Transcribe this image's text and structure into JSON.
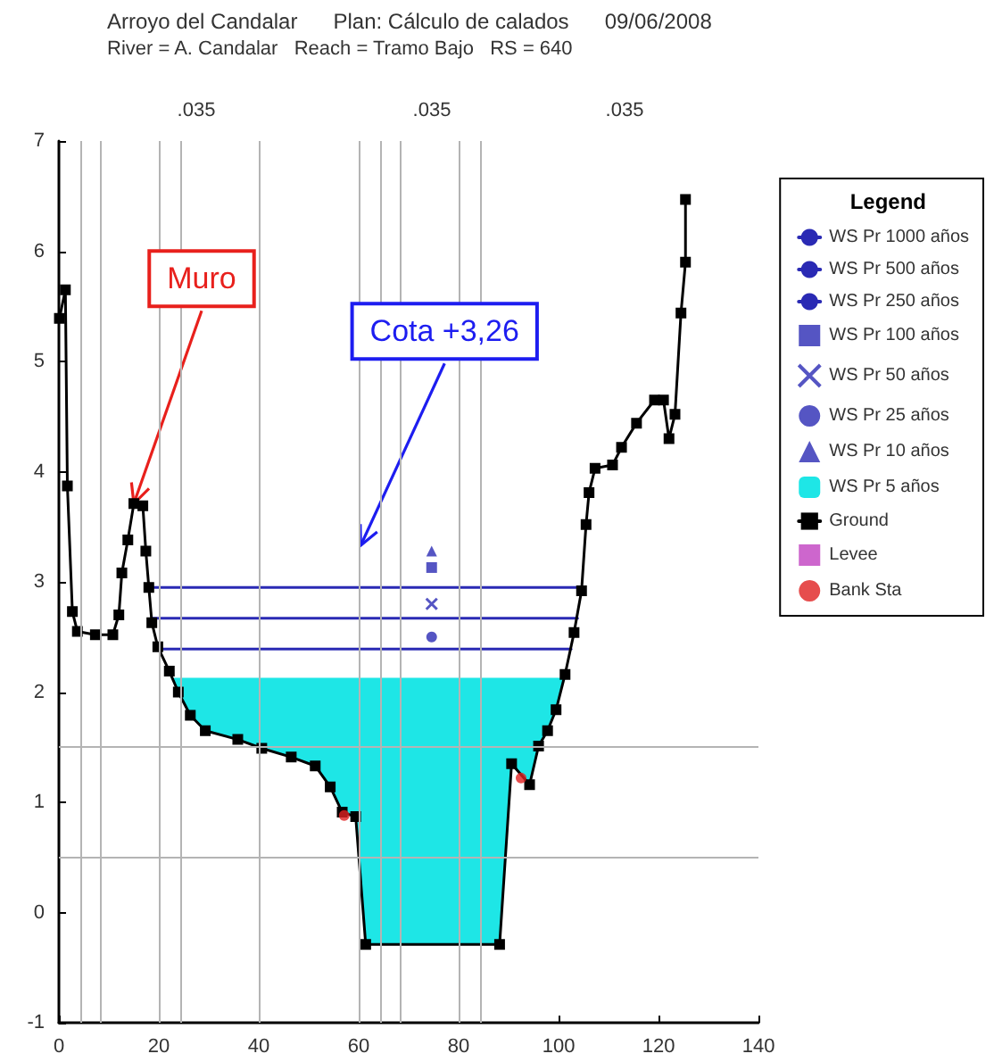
{
  "chart_data": {
    "type": "line",
    "title": "Arroyo del Candalar      Plan: Cálculo de calados      09/06/2008",
    "subtitle": "River = A. Candalar   Reach = Tramo Bajo   RS = 640",
    "legend_title": "Legend",
    "legend": "right",
    "grid": false,
    "xlim": [
      0,
      140
    ],
    "xticks": [
      0,
      20,
      40,
      60,
      80,
      100,
      120,
      140
    ],
    "ylim": [
      -1,
      7
    ],
    "yticks": [
      -1,
      0,
      1,
      2,
      3,
      4,
      5,
      6,
      7
    ],
    "annotations": [
      {
        "text": "Muro",
        "x": 15,
        "y": 3.71
      },
      {
        "text": "Cota +3,26",
        "x": 60.4,
        "y": 3.33
      },
      ".035",
      ".035",
      ".035"
    ],
    "ref_lines": [
      {
        "axis": "x",
        "value": 4.3,
        "color": "#b4b4b4"
      },
      {
        "axis": "x",
        "value": 8.2,
        "color": "#b4b4b4"
      },
      {
        "axis": "x",
        "value": 20,
        "color": "#b4b4b4"
      },
      {
        "axis": "x",
        "value": 24.3,
        "color": "#b4b4b4"
      },
      {
        "axis": "x",
        "value": 40,
        "color": "#b4b4b4"
      },
      {
        "axis": "x",
        "value": 60,
        "color": "#b4b4b4"
      },
      {
        "axis": "x",
        "value": 64.3,
        "color": "#b4b4b4"
      },
      {
        "axis": "x",
        "value": 68.2,
        "color": "#b4b4b4"
      },
      {
        "axis": "x",
        "value": 80,
        "color": "#b4b4b4"
      },
      {
        "axis": "x",
        "value": 84.3,
        "color": "#b4b4b4"
      },
      {
        "axis": "y",
        "value": 1.5,
        "color": "#b4b4b4"
      },
      {
        "axis": "y",
        "value": 0.5,
        "color": "#b4b4b4"
      }
    ],
    "series": [
      {
        "name": "WS Pr 1000 años",
        "type": "line",
        "marker": "none",
        "color": "#2a2ab4",
        "x": [
          18,
          104.6
        ],
        "values": [
          2.95,
          2.95
        ]
      },
      {
        "name": "WS Pr 500 años",
        "type": "line",
        "marker": "none",
        "color": "#2a2ab4",
        "x": [
          18.6,
          103.8
        ],
        "values": [
          2.67,
          2.67
        ]
      },
      {
        "name": "WS Pr 250 años",
        "type": "line",
        "marker": "none",
        "color": "#2a2ab4",
        "x": [
          19.8,
          102.5
        ],
        "values": [
          2.39,
          2.39
        ]
      },
      {
        "name": "WS Pr 100 años",
        "type": "scatter",
        "marker": "square",
        "color": "#2a2ab4",
        "x": [
          74.6
        ],
        "values": [
          3.13
        ]
      },
      {
        "name": "WS Pr 50 años",
        "type": "scatter",
        "marker": "cross",
        "color": "#2a2ab4",
        "x": [
          74.6
        ],
        "values": [
          2.8
        ]
      },
      {
        "name": "WS Pr 25 años",
        "type": "scatter",
        "marker": "circle",
        "color": "#2a2ab4",
        "x": [
          74.6
        ],
        "values": [
          2.5
        ]
      },
      {
        "name": "WS Pr 10 años",
        "type": "scatter",
        "marker": "triangle",
        "color": "#2a2ab4",
        "x": [
          74.6
        ],
        "values": [
          3.28
        ]
      },
      {
        "name": "WS Pr 5 años",
        "type": "area",
        "color": "#1ee6e6",
        "x": [
          22.6,
          101.2,
          99.5,
          97.8,
          96.0,
          94.2,
          90.6,
          88.2,
          61.4,
          59.4,
          56.7,
          54.3,
          51.3,
          46.5,
          40.6,
          35.8,
          29.3,
          26.3,
          23.9
        ],
        "values": [
          2.13,
          2.13,
          1.84,
          1.65,
          1.51,
          1.16,
          1.35,
          -0.29,
          -0.29,
          0.87,
          0.91,
          1.14,
          1.33,
          1.41,
          1.49,
          1.57,
          1.65,
          1.79,
          2.0
        ]
      },
      {
        "name": "Ground",
        "marker": "square",
        "color": "#000000",
        "x": [
          0.1,
          1.3,
          1.7,
          2.7,
          3.7,
          7.3,
          10.8,
          12.0,
          12.6,
          13.8,
          15.0,
          16.8,
          17.4,
          18.0,
          18.6,
          19.8,
          22.1,
          23.9,
          26.3,
          29.3,
          35.8,
          40.6,
          46.5,
          51.3,
          54.3,
          56.7,
          59.4,
          61.4,
          88.2,
          90.6,
          94.2,
          96.0,
          97.8,
          99.5,
          101.3,
          103.1,
          104.6,
          105.5,
          106.1,
          107.3,
          110.8,
          112.6,
          115.6,
          119.2,
          121.0,
          122.1,
          123.3,
          124.5,
          125.4,
          125.4
        ],
        "values": [
          5.39,
          5.65,
          3.87,
          2.73,
          2.55,
          2.52,
          2.52,
          2.7,
          3.08,
          3.38,
          3.71,
          3.69,
          3.28,
          2.95,
          2.63,
          2.41,
          2.19,
          2.0,
          1.79,
          1.65,
          1.57,
          1.49,
          1.41,
          1.33,
          1.14,
          0.91,
          0.87,
          -0.29,
          -0.29,
          1.35,
          1.16,
          1.51,
          1.65,
          1.84,
          2.16,
          2.54,
          2.92,
          3.52,
          3.81,
          4.03,
          4.06,
          4.22,
          4.44,
          4.65,
          4.65,
          4.3,
          4.52,
          5.44,
          5.9,
          6.47
        ]
      },
      {
        "name": "Levee",
        "type": "scatter",
        "marker": "square",
        "color": "#c040c0"
      },
      {
        "name": "Bank Sta",
        "type": "scatter",
        "marker": "circle",
        "color": "#e02020",
        "x": [
          57.1,
          92.5
        ],
        "values": [
          0.88,
          1.22
        ]
      }
    ]
  }
}
